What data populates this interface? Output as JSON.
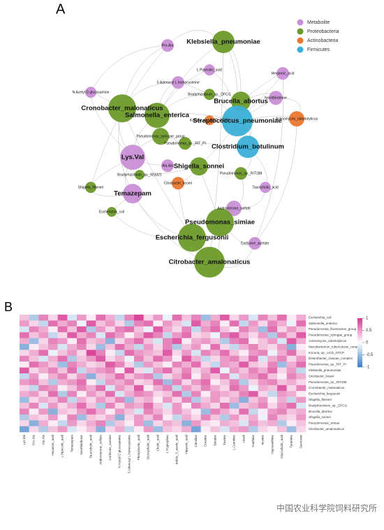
{
  "network": {
    "title": "A",
    "legend": [
      {
        "name": "Metabolite",
        "color": "#c98fd6"
      },
      {
        "name": "Proteobacteria",
        "color": "#6b9a2a"
      },
      {
        "name": "Actinobacteria",
        "color": "#e9772f"
      },
      {
        "name": "Firmicutes",
        "color": "#3bb0d6"
      }
    ],
    "nodes": [
      {
        "label": "Klebsiella_pneumoniae",
        "group": "Proteobacteria",
        "degree": 16
      },
      {
        "label": "Pro.Ala",
        "group": "Metabolite",
        "degree": 9
      },
      {
        "label": "L Pipecolic_acid",
        "group": "Metabolite",
        "degree": 8
      },
      {
        "label": "Hexanoic_acid",
        "group": "Metabolite",
        "degree": 9
      },
      {
        "label": "S Adenosyl L homocysteine",
        "group": "Metabolite",
        "degree": 9
      },
      {
        "label": "Bradyrhizobium_sp._DFCI1",
        "group": "Proteobacteria",
        "degree": 8
      },
      {
        "label": "Brucella_abortus",
        "group": "Proteobacteria",
        "degree": 14
      },
      {
        "label": "Norethindrone",
        "group": "Metabolite",
        "degree": 10
      },
      {
        "label": "Cronobacter_malonaticus",
        "group": "Proteobacteria",
        "degree": 20
      },
      {
        "label": "Salmonella_enterica",
        "group": "Proteobacteria",
        "degree": 18
      },
      {
        "label": "Kocuria_sp._UCD_OTCP",
        "group": "Actinobacteria",
        "degree": 7
      },
      {
        "label": "Streptococcus_pneumoniae",
        "group": "Firmicutes",
        "degree": 22
      },
      {
        "label": "Actinomyces_odontolyticus",
        "group": "Actinobacteria",
        "degree": 11
      },
      {
        "label": "Pseudomonas_syringae_group",
        "group": "Proteobacteria",
        "degree": 12
      },
      {
        "label": "Pseudomonas_sp._RIT_PI",
        "group": "Proteobacteria",
        "degree": 9
      },
      {
        "label": "Clostridium_botulinum",
        "group": "Firmicutes",
        "degree": 16
      },
      {
        "label": "Lys.Val",
        "group": "Metabolite",
        "degree": 18
      },
      {
        "label": "Ala.Ala",
        "group": "Metabolite",
        "degree": 9
      },
      {
        "label": "Shigella_sonnei",
        "group": "Proteobacteria",
        "degree": 13
      },
      {
        "label": "Pseudomonas_sp._RIT288",
        "group": "Proteobacteria",
        "degree": 9
      },
      {
        "label": "Citrobacter_koseri",
        "group": "Actinobacteria",
        "degree": 9
      },
      {
        "label": "Shigella_flexneri",
        "group": "Proteobacteria",
        "degree": 8
      },
      {
        "label": "Temazepam",
        "group": "Metabolite",
        "degree": 14
      },
      {
        "label": "Androsterone_sulfate",
        "group": "Metabolite",
        "degree": 11
      },
      {
        "label": "Pseudomonas_simiae",
        "group": "Proteobacteria",
        "degree": 20
      },
      {
        "label": "Escherichia_fergusonii",
        "group": "Proteobacteria",
        "degree": 20
      },
      {
        "label": "Cortisone_acetate",
        "group": "Metabolite",
        "degree": 9
      },
      {
        "label": "Citrobacter_amalonaticus",
        "group": "Proteobacteria",
        "degree": 22
      },
      {
        "label": "Taurocholic_acid",
        "group": "Metabolite",
        "degree": 8
      },
      {
        "label": "Bradyrhizobium_sp._923321",
        "group": "Proteobacteria",
        "degree": 7
      },
      {
        "label": "N Acetyl D glucosamine",
        "group": "Metabolite",
        "degree": 8
      },
      {
        "label": "Escherichia_coli",
        "group": "Proteobacteria",
        "degree": 7
      }
    ]
  },
  "heatmap": {
    "title": "B",
    "rows": [
      "Escherichia_coli",
      "Salmonella_enterica",
      "Pseudomonas_fluorescens_group",
      "Pseudomonas_syringae_group",
      "Actinomyces_odontolyticus",
      "Mycobacterium_tuberculosis_complex",
      "Kocuria_sp._UCD_OTCP",
      "Enterobacter_cloacae_complex",
      "Pseudomonas_sp._RIT_PI",
      "Klebsiella_pneumoniae",
      "Citrobacter_koseri",
      "Pseudomonas_sp._RIT288",
      "Cronobacter_malonaticus",
      "Escherichia_fergusonii",
      "Shigella_flexneri",
      "Bradyrhizobium_sp._DFCI1",
      "Brucella_abortus",
      "Shigella_sonnei",
      "Pseudomonas_simiae",
      "Citrobacter_amalonaticus"
    ],
    "columns": [
      "Lys.Val",
      "Pro.Ala",
      "Ala.Ala",
      "Hexanoic_acid",
      "L Pipecolic_acid",
      "Temazepam",
      "Norethindrone",
      "Taurocholic_acid",
      "Androsterone_sulfate",
      "Cortisone_acetate",
      "N Acetyl D glucosamine",
      "S Adenosyl L homocysteine",
      "Phenylacetic_acid",
      "Deoxycholic_acid",
      "Cholic_acid",
      "L Tryptophan",
      "Indole_3_acetic_acid",
      "Hippuric_acid",
      "Citrulline",
      "Creatine",
      "Betaine",
      "Taurine",
      "L Carnitine",
      "Uracil",
      "Xanthine",
      "Inosine",
      "Hypoxanthine",
      "Glycocholic_acid",
      "Tyramine",
      "Serotonin"
    ],
    "values": [
      [
        0.3,
        -0.4,
        0.6,
        0.2,
        0.8,
        -0.2,
        0.5,
        0.1,
        0.7,
        0.4,
        -0.3,
        0.6,
        0.9,
        0.2,
        0.5,
        -0.1,
        0.7,
        0.3,
        0.6,
        -0.5,
        0.4,
        0.8,
        0.2,
        0.5,
        -0.2,
        0.6,
        0.3,
        0.7,
        0.1,
        0.4
      ],
      [
        0.5,
        0.2,
        -0.3,
        0.7,
        0.4,
        0.6,
        -0.1,
        0.8,
        0.3,
        0.5,
        0.2,
        -0.4,
        0.6,
        0.7,
        0.1,
        0.5,
        0.3,
        -0.2,
        0.8,
        0.4,
        0.6,
        0.1,
        0.7,
        -0.3,
        0.5,
        0.2,
        0.6,
        0.4,
        -0.1,
        0.7
      ],
      [
        -0.2,
        0.6,
        0.4,
        0.1,
        0.7,
        0.3,
        0.8,
        -0.4,
        0.5,
        0.2,
        0.6,
        0.7,
        0.3,
        -0.1,
        0.8,
        0.4,
        0.2,
        0.6,
        -0.3,
        0.5,
        0.7,
        0.3,
        0.1,
        0.6,
        0.4,
        -0.5,
        0.7,
        0.2,
        0.5,
        0.3
      ],
      [
        0.7,
        0.3,
        0.5,
        -0.3,
        0.2,
        0.8,
        0.4,
        0.6,
        -0.2,
        0.7,
        0.5,
        0.1,
        0.4,
        0.8,
        0.6,
        -0.3,
        0.5,
        0.7,
        0.2,
        0.3,
        -0.1,
        0.6,
        0.8,
        0.4,
        0.2,
        0.5,
        -0.4,
        0.6,
        0.3,
        0.8
      ],
      [
        0.4,
        -0.5,
        0.2,
        0.6,
        0.5,
        0.1,
        0.7,
        0.3,
        0.4,
        -0.6,
        0.2,
        0.5,
        0.7,
        0.3,
        -0.2,
        0.6,
        0.8,
        0.1,
        0.4,
        0.5,
        0.3,
        -0.4,
        0.6,
        0.7,
        0.1,
        0.3,
        0.5,
        -0.2,
        0.8,
        0.4
      ],
      [
        -0.6,
        0.1,
        0.3,
        0.5,
        -0.2,
        0.4,
        0.6,
        0.2,
        -0.5,
        0.3,
        0.7,
        0.4,
        -0.3,
        0.5,
        0.2,
        0.6,
        -0.4,
        0.3,
        0.5,
        0.1,
        0.7,
        0.2,
        -0.3,
        0.4,
        0.6,
        0.3,
        0.2,
        0.5,
        -0.6,
        0.1
      ],
      [
        0.2,
        0.4,
        0.7,
        -0.1,
        0.3,
        0.5,
        0.2,
        0.9,
        0.6,
        0.1,
        -0.3,
        0.7,
        0.5,
        0.4,
        0.3,
        0.8,
        0.2,
        0.5,
        -0.2,
        0.6,
        0.4,
        0.7,
        0.3,
        0.1,
        0.5,
        0.6,
        -0.1,
        0.4,
        0.7,
        0.2
      ],
      [
        0.6,
        0.3,
        -0.2,
        0.4,
        0.7,
        -0.4,
        0.3,
        0.5,
        0.8,
        0.2,
        0.4,
        -0.1,
        0.6,
        0.3,
        0.7,
        0.5,
        0.1,
        0.8,
        0.4,
        -0.3,
        0.2,
        0.5,
        0.6,
        0.3,
        0.7,
        -0.2,
        0.4,
        0.6,
        0.2,
        0.5
      ],
      [
        0.1,
        0.7,
        0.5,
        0.3,
        -0.5,
        0.6,
        0.4,
        0.2,
        0.3,
        0.8,
        0.6,
        0.2,
        -0.4,
        0.5,
        0.3,
        0.1,
        0.6,
        0.4,
        0.7,
        0.2,
        -0.3,
        0.5,
        0.4,
        0.8,
        0.3,
        0.2,
        0.6,
        -0.5,
        0.4,
        0.7
      ],
      [
        0.8,
        0.2,
        0.4,
        0.6,
        0.3,
        0.7,
        -0.3,
        0.4,
        0.5,
        0.6,
        0.1,
        0.8,
        0.2,
        -0.2,
        0.5,
        0.7,
        0.3,
        0.6,
        0.2,
        0.4,
        0.8,
        -0.1,
        0.5,
        0.3,
        0.6,
        0.4,
        0.7,
        0.2,
        0.5,
        -0.3
      ],
      [
        -0.3,
        0.5,
        0.1,
        0.4,
        0.6,
        0.2,
        0.5,
        -0.6,
        0.3,
        0.4,
        0.7,
        0.3,
        0.5,
        0.6,
        -0.4,
        0.2,
        0.4,
        0.7,
        0.1,
        0.5,
        0.3,
        0.6,
        -0.2,
        0.4,
        0.5,
        0.7,
        0.3,
        0.1,
        0.6,
        0.4
      ],
      [
        0.5,
        0.6,
        0.3,
        -0.4,
        0.4,
        0.5,
        0.7,
        0.1,
        -0.3,
        0.5,
        0.4,
        0.6,
        0.2,
        0.3,
        0.7,
        -0.5,
        0.6,
        0.2,
        0.5,
        0.7,
        0.1,
        0.3,
        0.6,
        -0.4,
        0.2,
        0.5,
        0.6,
        0.3,
        0.4,
        0.2
      ],
      [
        0.2,
        -0.3,
        0.6,
        0.5,
        0.1,
        0.3,
        0.6,
        0.4,
        0.7,
        -0.2,
        0.5,
        0.3,
        0.8,
        0.1,
        0.4,
        0.6,
        -0.3,
        0.5,
        0.3,
        0.6,
        0.4,
        0.2,
        0.7,
        0.5,
        -0.1,
        0.4,
        0.3,
        0.8,
        0.2,
        0.6
      ],
      [
        0.4,
        0.5,
        0.2,
        0.7,
        -0.4,
        0.6,
        0.1,
        0.5,
        0.3,
        0.7,
        -0.2,
        0.4,
        0.6,
        0.5,
        0.2,
        0.3,
        0.7,
        -0.4,
        0.6,
        0.1,
        0.5,
        0.4,
        0.3,
        0.6,
        0.8,
        0.2,
        -0.3,
        0.5,
        0.4,
        0.1
      ],
      [
        -0.5,
        0.2,
        0.4,
        0.3,
        0.6,
        -0.3,
        0.4,
        0.2,
        0.5,
        0.3,
        0.6,
        -0.5,
        0.3,
        0.4,
        0.1,
        0.5,
        0.2,
        0.6,
        -0.4,
        0.3,
        0.5,
        0.2,
        0.4,
        -0.6,
        0.3,
        0.5,
        0.1,
        0.4,
        -0.3,
        0.5
      ],
      [
        0.3,
        0.6,
        -0.2,
        0.5,
        0.2,
        0.4,
        0.7,
        0.3,
        -0.4,
        0.6,
        0.2,
        0.5,
        0.4,
        0.7,
        0.3,
        -0.2,
        0.5,
        0.1,
        0.6,
        0.4,
        0.2,
        0.7,
        -0.5,
        0.3,
        0.4,
        0.6,
        0.2,
        0.5,
        0.7,
        -0.2
      ],
      [
        0.6,
        0.1,
        0.5,
        -0.6,
        0.3,
        0.2,
        0.5,
        0.7,
        0.4,
        0.1,
        0.5,
        0.3,
        -0.2,
        0.6,
        0.4,
        0.2,
        0.5,
        0.3,
        0.1,
        -0.5,
        0.6,
        0.4,
        0.2,
        0.7,
        -0.3,
        0.1,
        0.5,
        0.6,
        0.3,
        0.4
      ],
      [
        -0.4,
        0.3,
        0.2,
        0.5,
        0.1,
        0.6,
        -0.5,
        0.3,
        0.2,
        0.4,
        -0.6,
        0.2,
        0.5,
        0.3,
        0.6,
        0.1,
        -0.3,
        0.4,
        0.2,
        0.6,
        0.3,
        -0.4,
        0.5,
        0.2,
        0.4,
        -0.1,
        0.6,
        0.3,
        0.2,
        0.5
      ],
      [
        0.2,
        -0.6,
        0.4,
        0.1,
        -0.3,
        0.5,
        0.2,
        0.4,
        0.6,
        -0.4,
        0.3,
        0.1,
        0.5,
        -0.5,
        0.2,
        0.4,
        0.3,
        -0.6,
        0.5,
        0.2,
        0.1,
        0.4,
        0.3,
        -0.2,
        0.5,
        0.3,
        0.4,
        -0.4,
        0.1,
        0.3
      ],
      [
        -0.7,
        0.2,
        -0.4,
        0.3,
        0.5,
        -0.2,
        0.1,
        0.3,
        -0.6,
        0.2,
        0.4,
        -0.3,
        0.1,
        0.5,
        -0.5,
        0.3,
        0.2,
        0.4,
        -0.7,
        0.1,
        0.3,
        -0.2,
        0.4,
        0.5,
        -0.4,
        0.2,
        0.1,
        0.3,
        -0.5,
        0.2
      ]
    ],
    "colorbar": {
      "lim": [
        -1,
        1
      ],
      "ticks": [
        1,
        0.5,
        0,
        -0.5,
        -1
      ]
    }
  },
  "watermark": "中国农业科学院饲料研究所"
}
